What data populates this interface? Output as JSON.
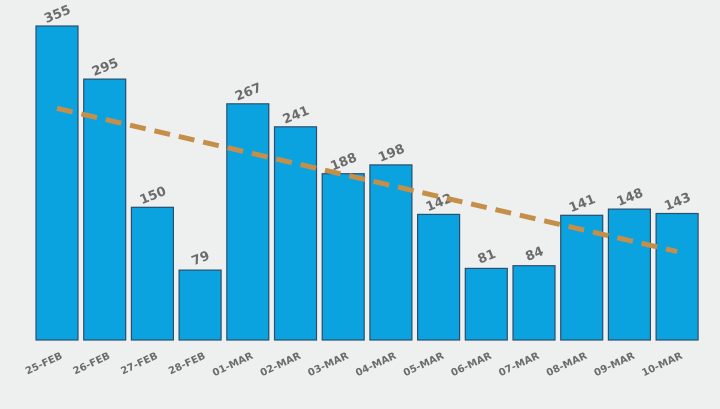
{
  "chart_data": {
    "type": "bar",
    "title": "",
    "xlabel": "",
    "ylabel": "",
    "categories": [
      "25-FEB",
      "26-FEB",
      "27-FEB",
      "28-FEB",
      "01-MAR",
      "02-MAR",
      "03-MAR",
      "04-MAR",
      "05-MAR",
      "06-MAR",
      "07-MAR",
      "08-MAR",
      "09-MAR",
      "10-MAR"
    ],
    "values": [
      355,
      295,
      150,
      79,
      267,
      241,
      188,
      198,
      142,
      81,
      84,
      141,
      148,
      143
    ],
    "data_labels": [
      "355",
      "295",
      "150",
      "79",
      "267",
      "241",
      "188",
      "198",
      "142",
      "81",
      "84",
      "141",
      "148",
      "143"
    ],
    "trendline": {
      "type": "linear",
      "start_value": 262,
      "end_value": 100,
      "style": "dashed"
    },
    "ylim": [
      0,
      355
    ],
    "grid": false,
    "legend": "none",
    "colors": {
      "bar": "#0aa3e0",
      "bar_edge": "#2b4e6e",
      "trendline": "#c58f4a",
      "text": "#6b6b6b",
      "background": "#eef0ef"
    }
  }
}
